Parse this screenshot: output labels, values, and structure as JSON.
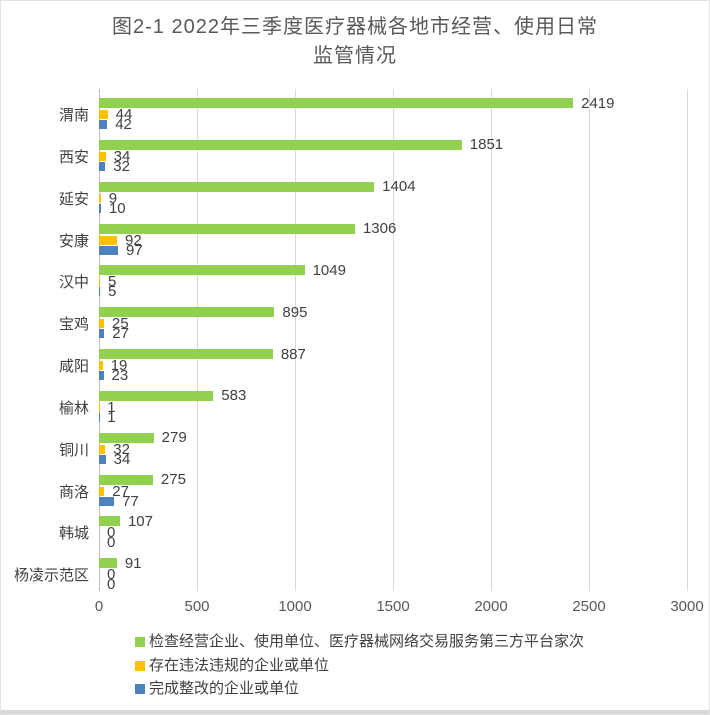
{
  "chart_data": {
    "type": "bar",
    "orientation": "horizontal",
    "title": "图2-1 2022年三季度医疗器械各地市经营、使用日常\n监管情况",
    "categories": [
      "渭南",
      "西安",
      "延安",
      "安康",
      "汉中",
      "宝鸡",
      "咸阳",
      "榆林",
      "铜川",
      "商洛",
      "韩城",
      "杨凌示范区"
    ],
    "series": [
      {
        "key": "inspections",
        "name": "检查经营企业、使用单位、医疗器械网络交易服务第三方平台家次",
        "color": "#92d050",
        "values": [
          2419,
          1851,
          1404,
          1306,
          1049,
          895,
          887,
          583,
          279,
          275,
          107,
          91
        ]
      },
      {
        "key": "violations",
        "name": "存在违法违规的企业或单位",
        "color": "#ffc000",
        "values": [
          44,
          34,
          9,
          92,
          5,
          25,
          19,
          1,
          32,
          27,
          0,
          0
        ]
      },
      {
        "key": "rectified",
        "name": "完成整改的企业或单位",
        "color": "#4f81bd",
        "values": [
          42,
          32,
          10,
          97,
          5,
          27,
          23,
          1,
          34,
          77,
          0,
          0
        ]
      }
    ],
    "xlim": [
      0,
      3000
    ],
    "x_ticks": [
      0,
      500,
      1000,
      1500,
      2000,
      2500,
      3000
    ],
    "grid": true,
    "data_labels": true,
    "legend_position": "bottom-left"
  },
  "colors": {
    "gridline": "#d9d9d9",
    "axis_line": "#bfbfbf",
    "title_text": "#595959",
    "label_text": "#404040",
    "tick_text": "#595959",
    "frame_border": "#e2e2e2",
    "bottom_strip": "#d9d9d9"
  }
}
